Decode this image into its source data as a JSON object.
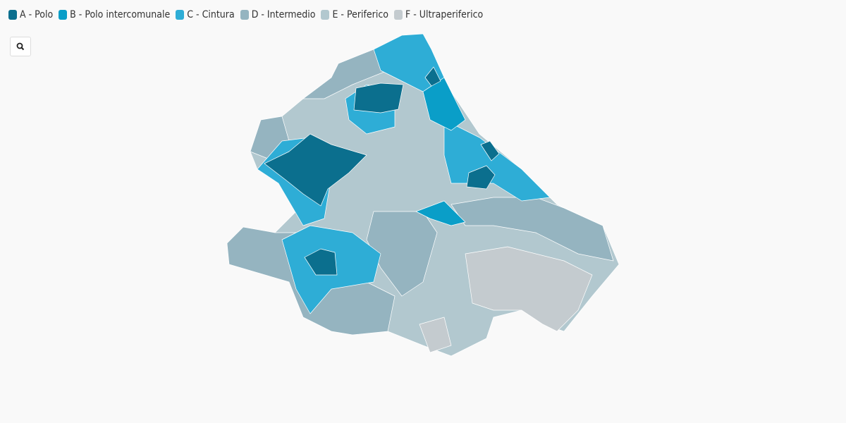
{
  "legend": {
    "items": [
      {
        "label": "A - Polo",
        "color": "#0b6f8e"
      },
      {
        "label": "B - Polo intercomunale",
        "color": "#0a9ec8"
      },
      {
        "label": "C - Cintura",
        "color": "#2eadd6"
      },
      {
        "label": "D - Intermedio",
        "color": "#95b4c0"
      },
      {
        "label": "E - Periferico",
        "color": "#b2c8cf"
      },
      {
        "label": "F - Ultraperiferico",
        "color": "#c4cbcf"
      }
    ]
  }
}
